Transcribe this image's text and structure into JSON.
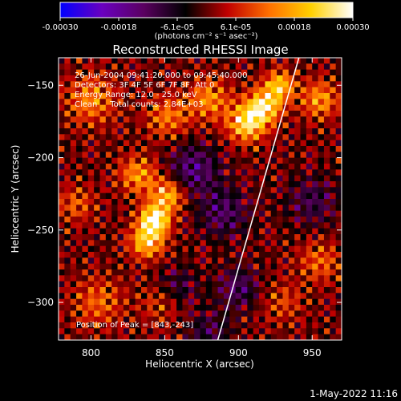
{
  "chart_data": {
    "type": "heatmap",
    "title": "Reconstructed RHESSI Image",
    "xlabel": "Heliocentric X (arcsec)",
    "ylabel": "Heliocentric Y (arcsec)",
    "xlim": [
      778,
      970
    ],
    "ylim": [
      -326,
      -131
    ],
    "x_ticks": [
      800,
      850,
      900,
      950
    ],
    "y_ticks": [
      -300,
      -250,
      -200,
      -150
    ],
    "colorbar": {
      "title": "(photons cm⁻² s⁻¹ asec⁻²)",
      "range": [
        -0.0003,
        0.0003
      ],
      "tick_labels": [
        "-0.00030",
        "-0.00018",
        "-6.1e-05",
        "6.1e-05",
        "0.00018",
        "0.00030"
      ],
      "colors": [
        "#0000ff",
        "#6a00c0",
        "#5a0060",
        "#000000",
        "#c00000",
        "#ff7000",
        "#ffd000",
        "#ffffff"
      ]
    },
    "annotations": [
      "26-Jun-2004 09:41:20.000 to 09:45:40.000",
      "Detectors: 3F 4F 5F 6F 7F 8F, Att 0",
      "Energy Range: 12.0 - 25.0 keV",
      "Clean     Total counts: 2.84E+03"
    ],
    "peak_label": "Position of Peak = [843,-243]",
    "peak_position": [
      843,
      -243
    ],
    "limb_line": [
      [
        886,
        -326
      ],
      [
        941,
        -131
      ]
    ],
    "grid_size": [
      48,
      48
    ],
    "sources": [
      {
        "x": 843,
        "y": -243,
        "sigma": 7,
        "amplitude": 0.0003
      },
      {
        "x": 838,
        "y": -258,
        "sigma": 8,
        "amplitude": 0.00022
      },
      {
        "x": 852,
        "y": -226,
        "sigma": 8,
        "amplitude": 0.0002
      },
      {
        "x": 832,
        "y": -212,
        "sigma": 9,
        "amplitude": 0.00016
      },
      {
        "x": 906,
        "y": -176,
        "sigma": 9,
        "amplitude": 0.00025
      },
      {
        "x": 918,
        "y": -164,
        "sigma": 8,
        "amplitude": 0.00024
      },
      {
        "x": 928,
        "y": -150,
        "sigma": 7,
        "amplitude": 0.0002
      },
      {
        "x": 955,
        "y": -160,
        "sigma": 9,
        "amplitude": 0.00016
      },
      {
        "x": 880,
        "y": -160,
        "sigma": 10,
        "amplitude": 0.00015
      },
      {
        "x": 852,
        "y": -172,
        "sigma": 10,
        "amplitude": 0.00013
      },
      {
        "x": 800,
        "y": -160,
        "sigma": 12,
        "amplitude": 0.00014
      },
      {
        "x": 790,
        "y": -232,
        "sigma": 9,
        "amplitude": 0.0001
      },
      {
        "x": 805,
        "y": -300,
        "sigma": 12,
        "amplitude": 0.00011
      },
      {
        "x": 848,
        "y": -300,
        "sigma": 10,
        "amplitude": 9e-05
      },
      {
        "x": 955,
        "y": -272,
        "sigma": 10,
        "amplitude": 0.00011
      },
      {
        "x": 930,
        "y": -300,
        "sigma": 10,
        "amplitude": 8e-05
      },
      {
        "x": 870,
        "y": -208,
        "sigma": 12,
        "amplitude": -0.00014
      },
      {
        "x": 890,
        "y": -238,
        "sigma": 12,
        "amplitude": -0.00012
      },
      {
        "x": 858,
        "y": -290,
        "sigma": 10,
        "amplitude": -0.0001
      },
      {
        "x": 900,
        "y": -290,
        "sigma": 10,
        "amplitude": -0.00012
      },
      {
        "x": 950,
        "y": -230,
        "sigma": 12,
        "amplitude": -0.0001
      },
      {
        "x": 880,
        "y": -320,
        "sigma": 10,
        "amplitude": -9e-05
      }
    ]
  },
  "footer": {
    "timestamp": "1-May-2022 11:16"
  }
}
